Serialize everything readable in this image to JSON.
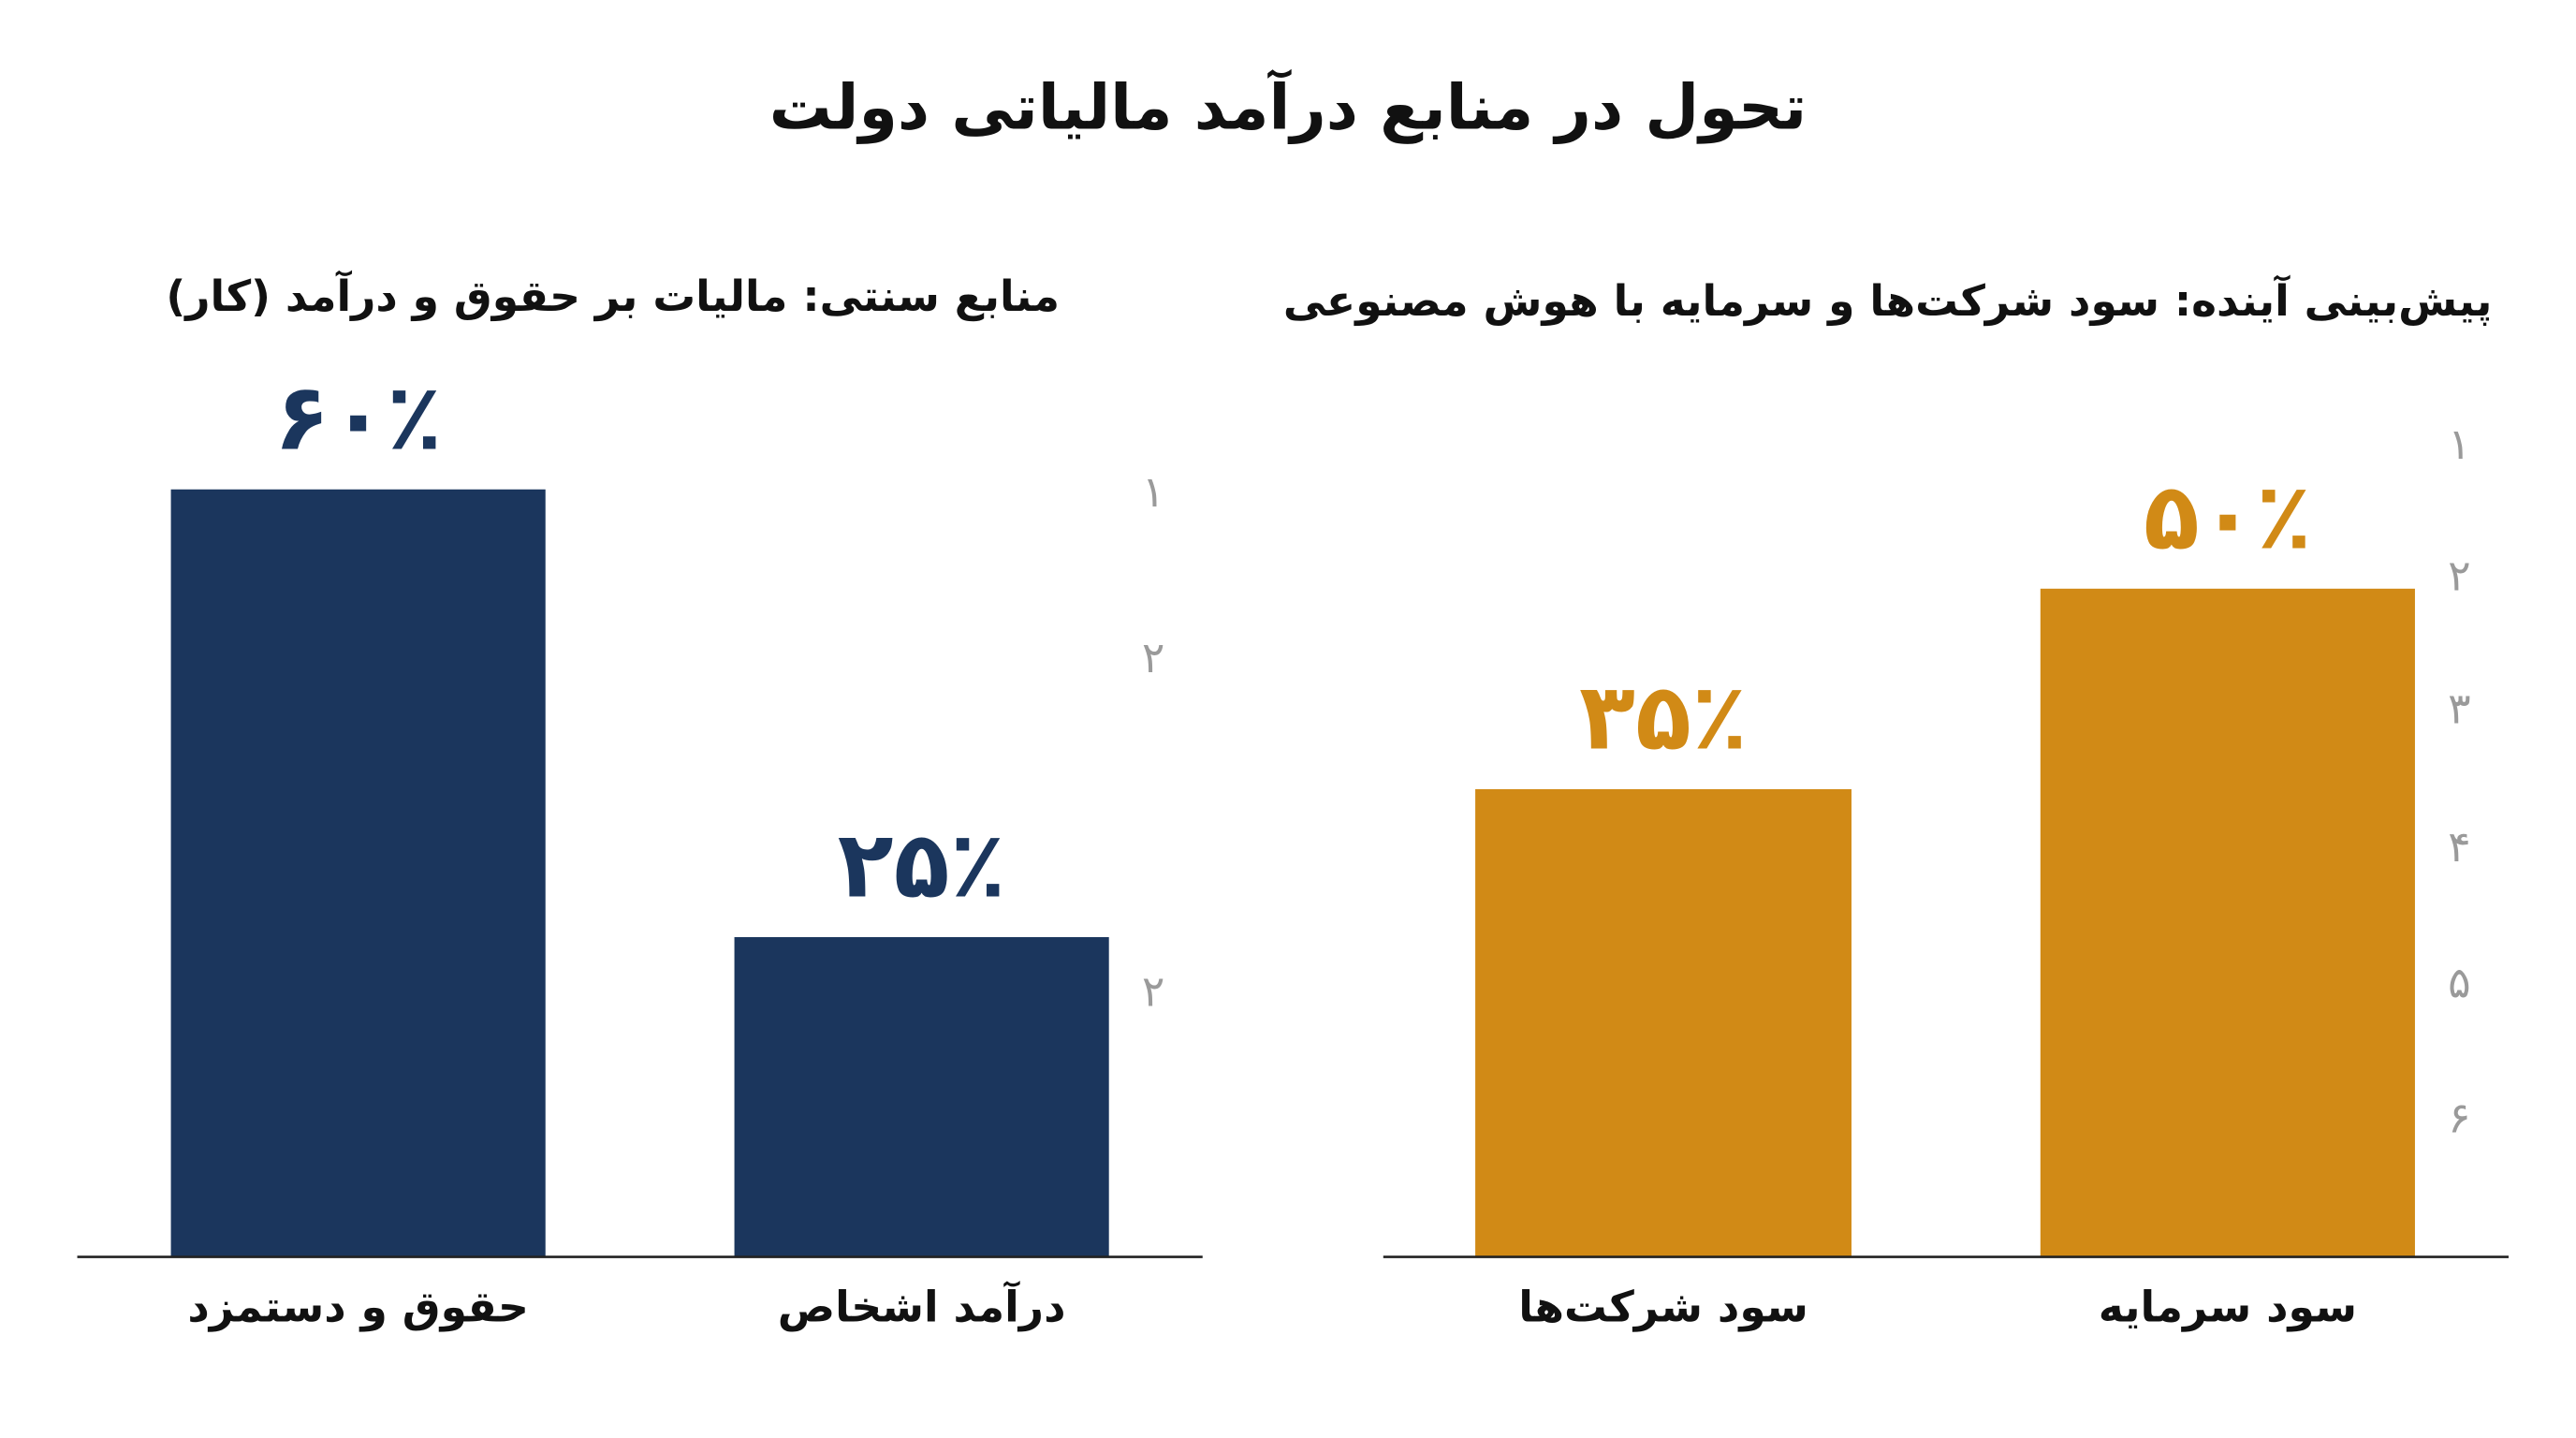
{
  "title": "تحول در منابع درآمد مالیاتی دولت",
  "chart_data": [
    {
      "type": "bar",
      "title": "منابع سنتی: مالیات بر حقوق و درآمد (کار)",
      "categories": [
        "حقوق و دستمزد",
        "درآمد اشخاص"
      ],
      "values": [
        60,
        25
      ],
      "value_labels": [
        "۶۰٪",
        "۲۵٪"
      ],
      "color": "#1b365d",
      "ylim": [
        0,
        70
      ],
      "side_labels": [
        "۱",
        "۲",
        "۲"
      ]
    },
    {
      "type": "bar",
      "title": "پیش‌بینی آینده: سود شرکت‌ها و سرمایه با هوش مصنوعی",
      "categories": [
        "سود شرکت‌ها",
        "سود سرمایه"
      ],
      "values": [
        35,
        50
      ],
      "value_labels": [
        "۳۵٪",
        "۵۰٪"
      ],
      "color": "#d18a16",
      "ylim": [
        0,
        67
      ],
      "side_labels": [
        "۱",
        "۲",
        "۳",
        "۴",
        "۵",
        "۶"
      ]
    }
  ]
}
